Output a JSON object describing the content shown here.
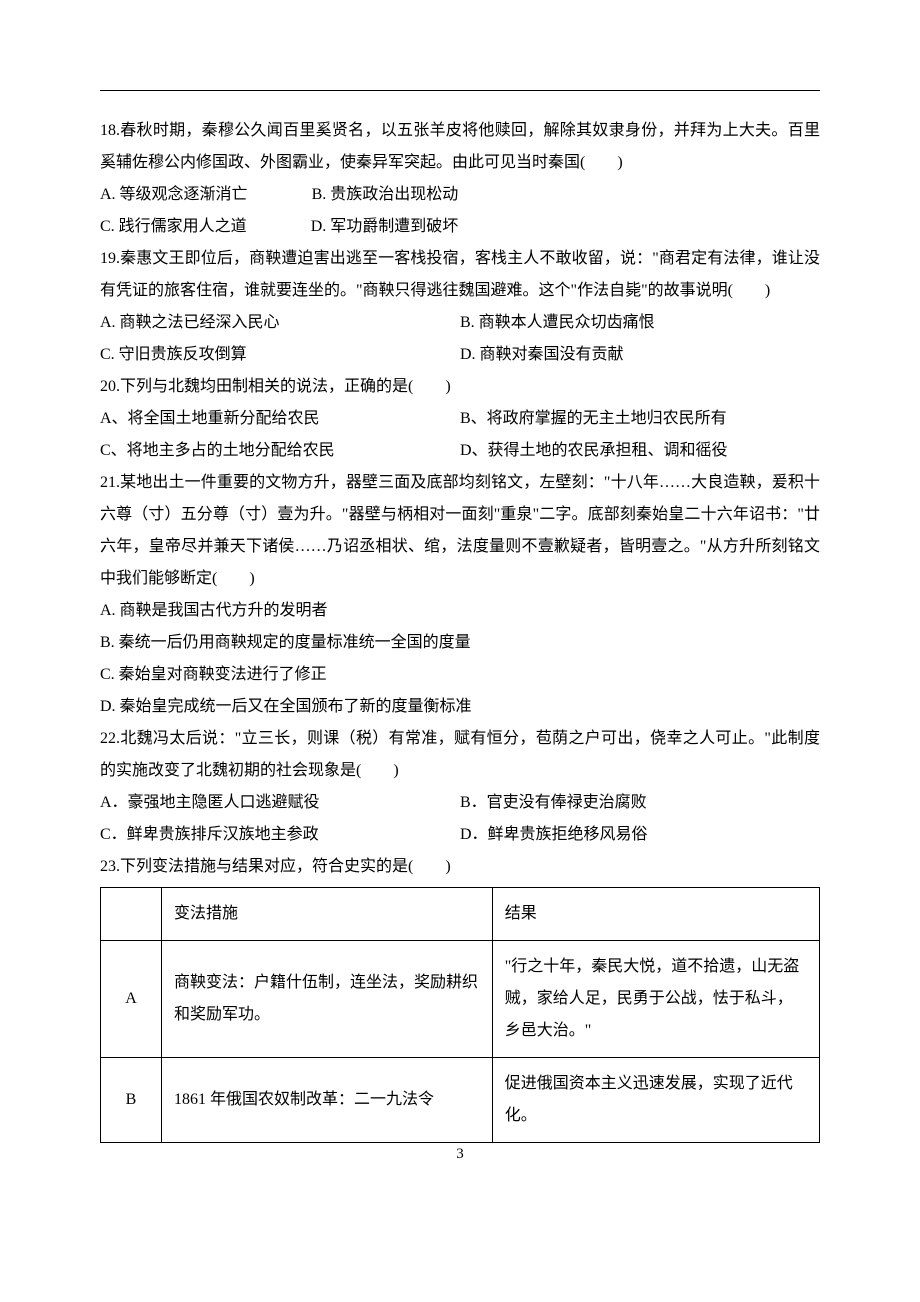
{
  "q18": {
    "stem": "18.春秋时期，秦穆公久闻百里奚贤名，以五张羊皮将他赎回，解除其奴隶身份，并拜为上大夫。百里奚辅佐穆公内修国政、外图霸业，使秦异军突起。由此可见当时秦国(　　)",
    "A": "A. 等级观念逐渐消亡",
    "B": "B. 贵族政治出现松动",
    "C": "C. 践行儒家用人之道",
    "D": "D. 军功爵制遭到破坏"
  },
  "q19": {
    "stem": "19.秦惠文王即位后，商鞅遭迫害出逃至一客栈投宿，客栈主人不敢收留，说：\"商君定有法律，谁让没有凭证的旅客住宿，谁就要连坐的。\"商鞅只得逃往魏国避难。这个\"作法自毙\"的故事说明(　　)",
    "A": "A. 商鞅之法已经深入民心",
    "B": "B. 商鞅本人遭民众切齿痛恨",
    "C": "C. 守旧贵族反攻倒算",
    "D": "D. 商鞅对秦国没有贡献"
  },
  "q20": {
    "stem": "20.下列与北魏均田制相关的说法，正确的是(　　)",
    "A": "A、将全国土地重新分配给农民",
    "B": "B、将政府掌握的无主土地归农民所有",
    "C": "C、将地主多占的土地分配给农民",
    "D": "D、获得土地的农民承担租、调和徭役"
  },
  "q21": {
    "stem": "21.某地出土一件重要的文物方升，器壁三面及底部均刻铭文，左壁刻：\"十八年……大良造鞅，爰积十六尊（寸）五分尊（寸）壹为升。\"器壁与柄相对一面刻\"重泉\"二字。底部刻秦始皇二十六年诏书：\"廿六年，皇帝尽并兼天下诸侯……乃诏丞相状、绾，法度量则不壹歉疑者，皆明壹之。\"从方升所刻铭文中我们能够断定(　　)",
    "A": "A. 商鞅是我国古代方升的发明者",
    "B": "B. 秦统一后仍用商鞅规定的度量标准统一全国的度量",
    "C": "C. 秦始皇对商鞅变法进行了修正",
    "D": "D. 秦始皇完成统一后又在全国颁布了新的度量衡标准"
  },
  "q22": {
    "stem": "22.北魏冯太后说：\"立三长，则课（税）有常准，赋有恒分，苞荫之户可出，侥幸之人可止。\"此制度的实施改变了北魏初期的社会现象是(　　)",
    "A": "A．豪强地主隐匿人口逃避赋役",
    "B": "B．官吏没有俸禄吏治腐败",
    "C": "C．鲜卑贵族排斥汉族地主参政",
    "D": "D．鲜卑贵族拒绝移风易俗"
  },
  "q23": {
    "stem": "23.下列变法措施与结果对应，符合史实的是(　　)",
    "header_measure": "变法措施",
    "header_result": "结果",
    "rows": [
      {
        "idx": "A",
        "measure": "商鞅变法：户籍什伍制，连坐法，奖励耕织和奖励军功。",
        "result": "\"行之十年，秦民大悦，道不拾遗，山无盗贼，家给人足，民勇于公战，怯于私斗，乡邑大治。\""
      },
      {
        "idx": "B",
        "measure": "1861 年俄国农奴制改革：二一九法令",
        "result": "促进俄国资本主义迅速发展，实现了近代化。"
      }
    ]
  },
  "page_number": "3"
}
